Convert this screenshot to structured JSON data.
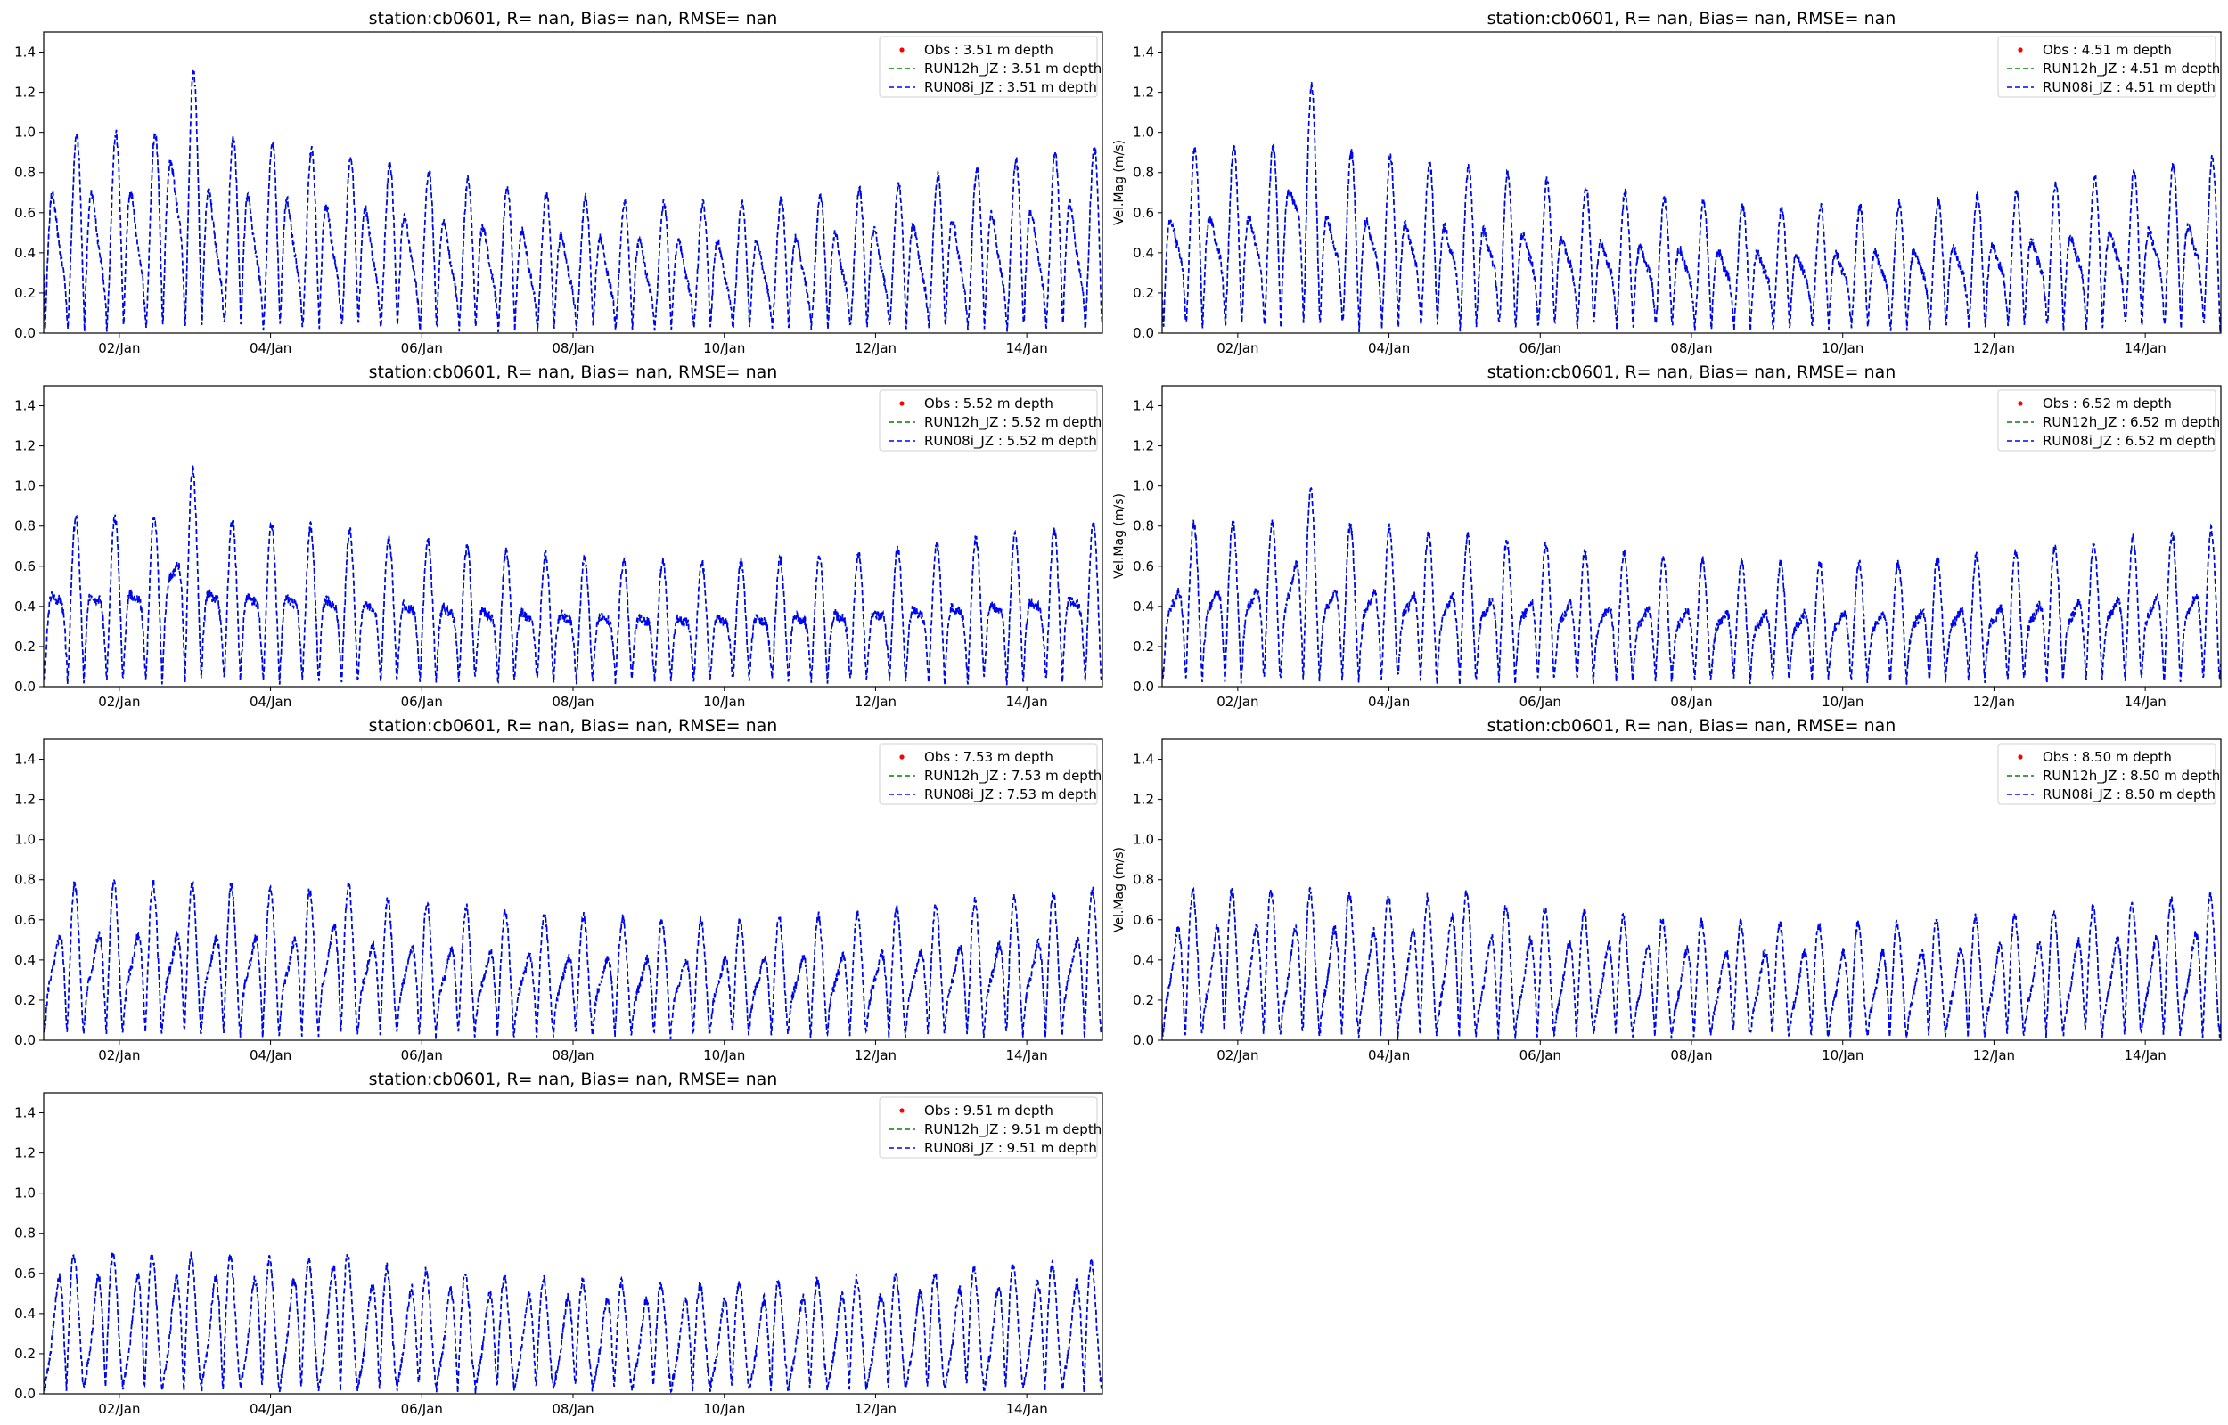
{
  "figure": {
    "background": "#ffffff"
  },
  "chart_data": [
    {
      "type": "line",
      "panel": "top-left",
      "title": "station:cb0601, R=   nan, Bias=    nan, RMSE=    nan",
      "xlabel": "",
      "ylabel": "",
      "xlim": [
        1.0,
        15.0
      ],
      "ylim": [
        0.0,
        1.5
      ],
      "yticks": [
        0.0,
        0.2,
        0.4,
        0.6,
        0.8,
        1.0,
        1.2,
        1.4
      ],
      "ytick_labels": [
        "0.0",
        "0.2",
        "0.4",
        "0.6",
        "0.8",
        "1.0",
        "1.2",
        "1.4"
      ],
      "xticks": [
        2,
        4,
        6,
        8,
        10,
        12,
        14
      ],
      "xtick_labels": [
        "02/Jan",
        "04/Jan",
        "06/Jan",
        "08/Jan",
        "10/Jan",
        "12/Jan",
        "14/Jan"
      ],
      "legend_position": "top-right",
      "params": {
        "peak": 0.78,
        "trough": 0.12,
        "spring_amp": 0.22,
        "event_amp": 0.45,
        "event_day": 2.85,
        "seed": 1
      },
      "series": [
        {
          "name": "Obs : 3.51 m depth",
          "color": "#ff0000",
          "style": "dot",
          "values": []
        },
        {
          "name": "RUN12h_JZ : 3.51 m depth",
          "color": "#008000",
          "style": "dashed",
          "values": "synthetic-semidiurnal"
        },
        {
          "name": "RUN08i_JZ : 3.51 m depth",
          "color": "#0000ff",
          "style": "dashed",
          "values": "synthetic-semidiurnal"
        }
      ]
    },
    {
      "type": "line",
      "panel": "top-right",
      "title": "station:cb0601, R=   nan, Bias=    nan, RMSE=    nan",
      "xlabel": "",
      "ylabel": "Vel.Mag (m/s)",
      "xlim": [
        1.0,
        15.0
      ],
      "ylim": [
        0.0,
        1.5
      ],
      "yticks": [
        0.0,
        0.2,
        0.4,
        0.6,
        0.8,
        1.0,
        1.2,
        1.4
      ],
      "ytick_labels": [
        "0.0",
        "0.2",
        "0.4",
        "0.6",
        "0.8",
        "1.0",
        "1.2",
        "1.4"
      ],
      "xticks": [
        2,
        4,
        6,
        8,
        10,
        12,
        14
      ],
      "xtick_labels": [
        "02/Jan",
        "04/Jan",
        "06/Jan",
        "08/Jan",
        "10/Jan",
        "12/Jan",
        "14/Jan"
      ],
      "legend_position": "top-right",
      "params": {
        "peak": 0.72,
        "trough": 0.14,
        "spring_amp": 0.2,
        "event_amp": 0.42,
        "event_day": 2.85,
        "seed": 2
      },
      "series": [
        {
          "name": "Obs : 4.51 m depth",
          "color": "#ff0000",
          "style": "dot",
          "values": []
        },
        {
          "name": "RUN12h_JZ : 4.51 m depth",
          "color": "#008000",
          "style": "dashed",
          "values": "synthetic-semidiurnal"
        },
        {
          "name": "RUN08i_JZ : 4.51 m depth",
          "color": "#0000ff",
          "style": "dashed",
          "values": "synthetic-semidiurnal"
        }
      ]
    },
    {
      "type": "line",
      "panel": "row2-left",
      "title": "station:cb0601, R=   nan, Bias=    nan, RMSE=    nan",
      "xlabel": "",
      "ylabel": "",
      "xlim": [
        1.0,
        15.0
      ],
      "ylim": [
        0.0,
        1.5
      ],
      "yticks": [
        0.0,
        0.2,
        0.4,
        0.6,
        0.8,
        1.0,
        1.2,
        1.4
      ],
      "ytick_labels": [
        "0.0",
        "0.2",
        "0.4",
        "0.6",
        "0.8",
        "1.0",
        "1.2",
        "1.4"
      ],
      "xticks": [
        2,
        4,
        6,
        8,
        10,
        12,
        14
      ],
      "xtick_labels": [
        "02/Jan",
        "04/Jan",
        "06/Jan",
        "08/Jan",
        "10/Jan",
        "12/Jan",
        "14/Jan"
      ],
      "legend_position": "top-right",
      "params": {
        "peak": 0.68,
        "trough": 0.12,
        "spring_amp": 0.16,
        "event_amp": 0.3,
        "event_day": 2.85,
        "seed": 3
      },
      "series": [
        {
          "name": "Obs : 5.52 m depth",
          "color": "#ff0000",
          "style": "dot",
          "values": []
        },
        {
          "name": "RUN12h_JZ : 5.52 m depth",
          "color": "#008000",
          "style": "dashed",
          "values": "synthetic-semidiurnal"
        },
        {
          "name": "RUN08i_JZ : 5.52 m depth",
          "color": "#0000ff",
          "style": "dashed",
          "values": "synthetic-semidiurnal"
        }
      ]
    },
    {
      "type": "line",
      "panel": "row2-right",
      "title": "station:cb0601, R=   nan, Bias=    nan, RMSE=    nan",
      "xlabel": "",
      "ylabel": "Vel.Mag (m/s)",
      "xlim": [
        1.0,
        15.0
      ],
      "ylim": [
        0.0,
        1.5
      ],
      "yticks": [
        0.0,
        0.2,
        0.4,
        0.6,
        0.8,
        1.0,
        1.2,
        1.4
      ],
      "ytick_labels": [
        "0.0",
        "0.2",
        "0.4",
        "0.6",
        "0.8",
        "1.0",
        "1.2",
        "1.4"
      ],
      "xticks": [
        2,
        4,
        6,
        8,
        10,
        12,
        14
      ],
      "xtick_labels": [
        "02/Jan",
        "04/Jan",
        "06/Jan",
        "08/Jan",
        "10/Jan",
        "12/Jan",
        "14/Jan"
      ],
      "legend_position": "top-right",
      "params": {
        "peak": 0.66,
        "trough": 0.14,
        "spring_amp": 0.15,
        "event_amp": 0.2,
        "event_day": 2.85,
        "seed": 4
      },
      "series": [
        {
          "name": "Obs : 6.52 m depth",
          "color": "#ff0000",
          "style": "dot",
          "values": []
        },
        {
          "name": "RUN12h_JZ : 6.52 m depth",
          "color": "#008000",
          "style": "dashed",
          "values": "synthetic-semidiurnal"
        },
        {
          "name": "RUN08i_JZ : 6.52 m depth",
          "color": "#0000ff",
          "style": "dashed",
          "values": "synthetic-semidiurnal"
        }
      ]
    },
    {
      "type": "line",
      "panel": "row3-left",
      "title": "station:cb0601, R=   nan, Bias=    nan, RMSE=    nan",
      "xlabel": "",
      "ylabel": "",
      "xlim": [
        1.0,
        15.0
      ],
      "ylim": [
        0.0,
        1.5
      ],
      "yticks": [
        0.0,
        0.2,
        0.4,
        0.6,
        0.8,
        1.0,
        1.2,
        1.4
      ],
      "ytick_labels": [
        "0.0",
        "0.2",
        "0.4",
        "0.6",
        "0.8",
        "1.0",
        "1.2",
        "1.4"
      ],
      "xticks": [
        2,
        4,
        6,
        8,
        10,
        12,
        14
      ],
      "xtick_labels": [
        "02/Jan",
        "04/Jan",
        "06/Jan",
        "08/Jan",
        "10/Jan",
        "12/Jan",
        "14/Jan"
      ],
      "legend_position": "top-right",
      "params": {
        "peak": 0.65,
        "trough": 0.12,
        "spring_amp": 0.14,
        "event_amp": 0.1,
        "event_day": 4.85,
        "seed": 5
      },
      "series": [
        {
          "name": "Obs : 7.53 m depth",
          "color": "#ff0000",
          "style": "dot",
          "values": []
        },
        {
          "name": "RUN12h_JZ : 7.53 m depth",
          "color": "#008000",
          "style": "dashed",
          "values": "synthetic-semidiurnal"
        },
        {
          "name": "RUN08i_JZ : 7.53 m depth",
          "color": "#0000ff",
          "style": "dashed",
          "values": "synthetic-semidiurnal"
        }
      ]
    },
    {
      "type": "line",
      "panel": "row3-right",
      "title": "station:cb0601, R=   nan, Bias=    nan, RMSE=    nan",
      "xlabel": "",
      "ylabel": "Vel.Mag (m/s)",
      "xlim": [
        1.0,
        15.0
      ],
      "ylim": [
        0.0,
        1.5
      ],
      "yticks": [
        0.0,
        0.2,
        0.4,
        0.6,
        0.8,
        1.0,
        1.2,
        1.4
      ],
      "ytick_labels": [
        "0.0",
        "0.2",
        "0.4",
        "0.6",
        "0.8",
        "1.0",
        "1.2",
        "1.4"
      ],
      "xticks": [
        2,
        4,
        6,
        8,
        10,
        12,
        14
      ],
      "xtick_labels": [
        "02/Jan",
        "04/Jan",
        "06/Jan",
        "08/Jan",
        "10/Jan",
        "12/Jan",
        "14/Jan"
      ],
      "legend_position": "top-right",
      "params": {
        "peak": 0.64,
        "trough": 0.1,
        "spring_amp": 0.13,
        "event_amp": 0.1,
        "event_day": 4.85,
        "seed": 6
      },
      "series": [
        {
          "name": "Obs : 8.50 m depth",
          "color": "#ff0000",
          "style": "dot",
          "values": []
        },
        {
          "name": "RUN12h_JZ : 8.50 m depth",
          "color": "#008000",
          "style": "dashed",
          "values": "synthetic-semidiurnal"
        },
        {
          "name": "RUN08i_JZ : 8.50 m depth",
          "color": "#0000ff",
          "style": "dashed",
          "values": "synthetic-semidiurnal"
        }
      ]
    },
    {
      "type": "line",
      "panel": "row4-left",
      "title": "station:cb0601, R=   nan, Bias=    nan, RMSE=    nan",
      "xlabel": "",
      "ylabel": "",
      "xlim": [
        1.0,
        15.0
      ],
      "ylim": [
        0.0,
        1.5
      ],
      "yticks": [
        0.0,
        0.2,
        0.4,
        0.6,
        0.8,
        1.0,
        1.2,
        1.4
      ],
      "ytick_labels": [
        "0.0",
        "0.2",
        "0.4",
        "0.6",
        "0.8",
        "1.0",
        "1.2",
        "1.4"
      ],
      "xticks": [
        2,
        4,
        6,
        8,
        10,
        12,
        14
      ],
      "xtick_labels": [
        "02/Jan",
        "04/Jan",
        "06/Jan",
        "08/Jan",
        "10/Jan",
        "12/Jan",
        "14/Jan"
      ],
      "legend_position": "top-right",
      "params": {
        "peak": 0.62,
        "trough": 0.1,
        "spring_amp": 0.12,
        "event_amp": 0.08,
        "event_day": 4.85,
        "seed": 7
      },
      "series": [
        {
          "name": "Obs : 9.51 m depth",
          "color": "#ff0000",
          "style": "dot",
          "values": []
        },
        {
          "name": "RUN12h_JZ : 9.51 m depth",
          "color": "#008000",
          "style": "dashed",
          "values": "synthetic-semidiurnal"
        },
        {
          "name": "RUN08i_JZ : 9.51 m depth",
          "color": "#0000ff",
          "style": "dashed",
          "values": "synthetic-semidiurnal"
        }
      ]
    }
  ]
}
